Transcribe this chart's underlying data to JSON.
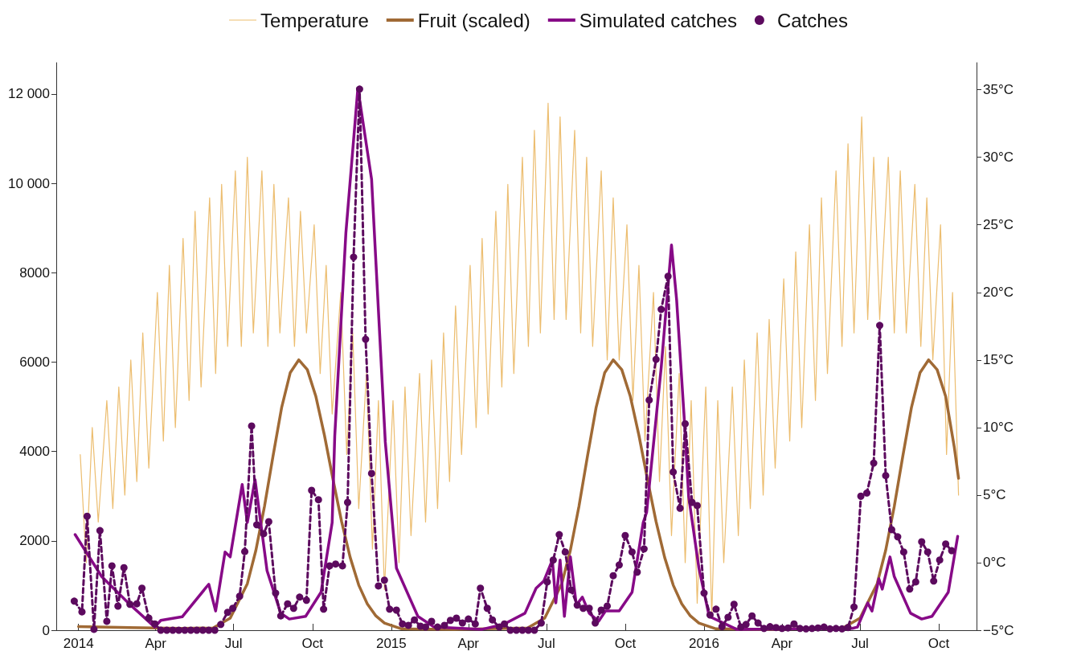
{
  "chart_data": {
    "type": "line",
    "legend": "top",
    "grid": false,
    "xlim": [
      "2013-12-06",
      "2016-11-14"
    ],
    "xticks": [
      {
        "value": "2014-01-01",
        "label": "2014"
      },
      {
        "value": "2014-04-01",
        "label": "Apr"
      },
      {
        "value": "2014-07-01",
        "label": "Jul"
      },
      {
        "value": "2014-10-01",
        "label": "Oct"
      },
      {
        "value": "2015-01-01",
        "label": "2015"
      },
      {
        "value": "2015-04-01",
        "label": "Apr"
      },
      {
        "value": "2015-07-01",
        "label": "Jul"
      },
      {
        "value": "2015-10-01",
        "label": "Oct"
      },
      {
        "value": "2016-01-01",
        "label": "2016"
      },
      {
        "value": "2016-04-01",
        "label": "Apr"
      },
      {
        "value": "2016-07-01",
        "label": "Jul"
      },
      {
        "value": "2016-10-01",
        "label": "Oct"
      }
    ],
    "ylim": [
      0,
      12700
    ],
    "yticks": [
      0,
      2000,
      4000,
      6000,
      8000,
      {
        "value": 10000,
        "label": "10 000"
      },
      {
        "value": 12000,
        "label": "12 000"
      }
    ],
    "y2lim": [
      -5,
      37
    ],
    "y2ticks": [
      {
        "value": -5,
        "label": "−5°C"
      },
      {
        "value": 0,
        "label": "0°C"
      },
      {
        "value": 5,
        "label": "5°C"
      },
      {
        "value": 10,
        "label": "10°C"
      },
      {
        "value": 15,
        "label": "15°C"
      },
      {
        "value": 20,
        "label": "20°C"
      },
      {
        "value": 25,
        "label": "25°C"
      },
      {
        "value": 30,
        "label": "30°C"
      },
      {
        "value": 35,
        "label": "35°C"
      }
    ],
    "series": [
      {
        "name": "Temperature",
        "axis": "y2",
        "color": "#ecbd6f",
        "marker": "none",
        "line_style": "solid",
        "x": [
          "2014-01-03",
          "2014-01-10",
          "2014-01-17",
          "2014-01-24",
          "2014-02-03",
          "2014-02-10",
          "2014-02-17",
          "2014-02-24",
          "2014-03-03",
          "2014-03-10",
          "2014-03-17",
          "2014-03-24",
          "2014-04-03",
          "2014-04-10",
          "2014-04-17",
          "2014-04-24",
          "2014-05-03",
          "2014-05-10",
          "2014-05-17",
          "2014-05-24",
          "2014-06-03",
          "2014-06-10",
          "2014-06-17",
          "2014-06-24",
          "2014-07-03",
          "2014-07-10",
          "2014-07-17",
          "2014-07-24",
          "2014-08-03",
          "2014-08-10",
          "2014-08-17",
          "2014-08-24",
          "2014-09-03",
          "2014-09-10",
          "2014-09-17",
          "2014-09-24",
          "2014-10-03",
          "2014-10-10",
          "2014-10-17",
          "2014-10-24",
          "2014-11-03",
          "2014-11-10",
          "2014-11-17",
          "2014-11-24",
          "2014-12-03",
          "2014-12-10",
          "2014-12-17",
          "2014-12-24",
          "2015-01-03",
          "2015-01-10",
          "2015-01-17",
          "2015-01-24",
          "2015-02-03",
          "2015-02-10",
          "2015-02-17",
          "2015-02-24",
          "2015-03-03",
          "2015-03-10",
          "2015-03-17",
          "2015-03-24",
          "2015-04-03",
          "2015-04-10",
          "2015-04-17",
          "2015-04-24",
          "2015-05-03",
          "2015-05-10",
          "2015-05-17",
          "2015-05-24",
          "2015-06-03",
          "2015-06-10",
          "2015-06-17",
          "2015-06-24",
          "2015-07-03",
          "2015-07-10",
          "2015-07-17",
          "2015-07-24",
          "2015-08-03",
          "2015-08-10",
          "2015-08-17",
          "2015-08-24",
          "2015-09-03",
          "2015-09-10",
          "2015-09-17",
          "2015-09-24",
          "2015-10-03",
          "2015-10-10",
          "2015-10-17",
          "2015-10-24",
          "2015-11-03",
          "2015-11-10",
          "2015-11-17",
          "2015-11-24",
          "2015-12-03",
          "2015-12-10",
          "2015-12-17",
          "2015-12-24",
          "2016-01-03",
          "2016-01-10",
          "2016-01-17",
          "2016-01-24",
          "2016-02-03",
          "2016-02-10",
          "2016-02-17",
          "2016-02-24",
          "2016-03-03",
          "2016-03-10",
          "2016-03-17",
          "2016-03-24",
          "2016-04-03",
          "2016-04-10",
          "2016-04-17",
          "2016-04-24",
          "2016-05-03",
          "2016-05-10",
          "2016-05-17",
          "2016-05-24",
          "2016-06-03",
          "2016-06-10",
          "2016-06-17",
          "2016-06-24",
          "2016-07-03",
          "2016-07-10",
          "2016-07-17",
          "2016-07-24",
          "2016-08-03",
          "2016-08-10",
          "2016-08-17",
          "2016-08-24",
          "2016-09-03",
          "2016-09-10",
          "2016-09-17",
          "2016-09-24",
          "2016-10-03",
          "2016-10-10",
          "2016-10-17",
          "2016-10-24"
        ],
        "values": [
          8,
          0,
          10,
          3,
          12,
          4,
          13,
          5,
          15,
          6,
          17,
          7,
          20,
          9,
          22,
          10,
          24,
          12,
          26,
          13,
          27,
          14,
          28,
          16,
          29,
          16,
          30,
          17,
          29,
          16,
          28,
          17,
          27,
          16,
          26,
          17,
          25,
          14,
          22,
          11,
          20,
          8,
          17,
          4,
          14,
          1,
          12,
          -2,
          12,
          0,
          13,
          2,
          14,
          3,
          15,
          4,
          17,
          6,
          19,
          8,
          22,
          10,
          24,
          11,
          26,
          13,
          28,
          14,
          30,
          16,
          32,
          17,
          34,
          18,
          33,
          18,
          32,
          17,
          30,
          16,
          29,
          15,
          27,
          15,
          25,
          12,
          22,
          9,
          20,
          6,
          16,
          2,
          14,
          0,
          12,
          -3,
          13,
          -4,
          12,
          0,
          13,
          2,
          15,
          4,
          17,
          5,
          18,
          7,
          21,
          9,
          23,
          10,
          25,
          12,
          27,
          14,
          29,
          16,
          31,
          17,
          33,
          18,
          30,
          18,
          30,
          17,
          29,
          17,
          28,
          16,
          27,
          15,
          25,
          8,
          20,
          5
        ]
      },
      {
        "name": "Fruit (scaled)",
        "axis": "y",
        "color": "#a06a35",
        "marker": "none",
        "line_style": "solid",
        "x": [
          "2014-01-01",
          "2014-03-01",
          "2014-05-01",
          "2014-06-07",
          "2014-06-27",
          "2014-07-17",
          "2014-07-27",
          "2014-08-06",
          "2014-08-16",
          "2014-08-26",
          "2014-09-05",
          "2014-09-15",
          "2014-09-25",
          "2014-10-05",
          "2014-10-15",
          "2014-10-25",
          "2014-11-04",
          "2014-11-14",
          "2014-11-24",
          "2014-12-04",
          "2014-12-14",
          "2014-12-24",
          "2015-01-13",
          "2015-03-15",
          "2015-06-09",
          "2015-06-29",
          "2015-07-19",
          "2015-07-29",
          "2015-08-08",
          "2015-08-18",
          "2015-08-28",
          "2015-09-07",
          "2015-09-17",
          "2015-09-27",
          "2015-10-07",
          "2015-10-17",
          "2015-10-27",
          "2015-11-06",
          "2015-11-16",
          "2015-11-26",
          "2015-12-06",
          "2015-12-16",
          "2015-12-26",
          "2016-01-15",
          "2016-03-15",
          "2016-06-11",
          "2016-07-01",
          "2016-07-21",
          "2016-07-31",
          "2016-08-10",
          "2016-08-20",
          "2016-08-30",
          "2016-09-09",
          "2016-09-19",
          "2016-09-29",
          "2016-10-09",
          "2016-10-19",
          "2016-10-24"
        ],
        "values": [
          80,
          60,
          40,
          50,
          270,
          1040,
          1790,
          2770,
          3900,
          4980,
          5760,
          6050,
          5830,
          5230,
          4360,
          3370,
          2430,
          1630,
          1010,
          590,
          320,
          160,
          30,
          20,
          50,
          270,
          1040,
          1790,
          2770,
          3900,
          4980,
          5760,
          6050,
          5830,
          5230,
          4360,
          3370,
          2430,
          1630,
          1010,
          590,
          320,
          160,
          30,
          20,
          50,
          270,
          1040,
          1790,
          2770,
          3900,
          4980,
          5760,
          6050,
          5830,
          5230,
          4100,
          3400
        ]
      },
      {
        "name": "Simulated catches",
        "axis": "y",
        "color": "#870a87",
        "marker": "none",
        "line_style": "solid",
        "x": [
          "2013-12-28",
          "2014-01-28",
          "2014-02-28",
          "2014-03-31",
          "2014-04-07",
          "2014-05-02",
          "2014-06-02",
          "2014-06-10",
          "2014-06-21",
          "2014-06-27",
          "2014-07-11",
          "2014-07-17",
          "2014-07-26",
          "2014-08-09",
          "2014-08-25",
          "2014-09-04",
          "2014-09-23",
          "2014-10-11",
          "2014-10-24",
          "2014-10-27",
          "2014-11-09",
          "2014-11-23",
          "2014-12-09",
          "2014-12-25",
          "2015-01-07",
          "2015-02-01",
          "2015-02-20",
          "2015-04-17",
          "2015-05-12",
          "2015-06-06",
          "2015-06-19",
          "2015-06-28",
          "2015-07-08",
          "2015-07-12",
          "2015-07-17",
          "2015-07-22",
          "2015-07-29",
          "2015-08-05",
          "2015-08-12",
          "2015-08-20",
          "2015-08-31",
          "2015-09-08",
          "2015-09-24",
          "2015-10-09",
          "2015-10-22",
          "2015-10-26",
          "2015-11-12",
          "2015-11-24",
          "2015-11-30",
          "2015-12-09",
          "2015-12-14",
          "2015-12-26",
          "2016-01-07",
          "2016-02-08",
          "2016-06-22",
          "2016-06-28",
          "2016-07-10",
          "2016-07-15",
          "2016-07-23",
          "2016-07-27",
          "2016-08-05",
          "2016-08-10",
          "2016-08-29",
          "2016-09-11",
          "2016-09-23",
          "2016-10-12",
          "2016-10-23"
        ],
        "values": [
          2140,
          1200,
          610,
          70,
          220,
          300,
          1030,
          430,
          1750,
          1640,
          3260,
          2410,
          3370,
          1330,
          380,
          250,
          310,
          850,
          2410,
          4340,
          8890,
          12130,
          10090,
          4210,
          1390,
          310,
          70,
          20,
          130,
          380,
          940,
          1100,
          1570,
          610,
          1570,
          310,
          1640,
          560,
          740,
          380,
          200,
          430,
          430,
          850,
          2410,
          2640,
          5880,
          8620,
          7390,
          4700,
          3000,
          1390,
          310,
          20,
          40,
          70,
          610,
          430,
          1150,
          920,
          1640,
          1200,
          380,
          250,
          310,
          850,
          2100
        ]
      },
      {
        "name": "Catches",
        "axis": "y",
        "color": "#5c0a5e",
        "marker": "circle",
        "line_style": "dashed",
        "x": [
          "2013-12-27",
          "2014-01-05",
          "2014-01-11",
          "2014-01-19",
          "2014-01-26",
          "2014-02-03",
          "2014-02-09",
          "2014-02-16",
          "2014-02-23",
          "2014-03-02",
          "2014-03-10",
          "2014-03-16",
          "2014-03-24",
          "2014-03-31",
          "2014-04-07",
          "2014-04-14",
          "2014-04-21",
          "2014-04-28",
          "2014-05-05",
          "2014-05-12",
          "2014-05-19",
          "2014-05-26",
          "2014-06-02",
          "2014-06-09",
          "2014-06-16",
          "2014-06-24",
          "2014-06-30",
          "2014-07-08",
          "2014-07-14",
          "2014-07-22",
          "2014-07-28",
          "2014-08-05",
          "2014-08-11",
          "2014-08-19",
          "2014-08-25",
          "2014-09-02",
          "2014-09-09",
          "2014-09-16",
          "2014-09-24",
          "2014-09-30",
          "2014-10-08",
          "2014-10-14",
          "2014-10-21",
          "2014-10-28",
          "2014-11-05",
          "2014-11-11",
          "2014-11-18",
          "2014-11-25",
          "2014-12-02",
          "2014-12-09",
          "2014-12-17",
          "2014-12-24",
          "2014-12-30",
          "2015-01-07",
          "2015-01-14",
          "2015-01-21",
          "2015-01-28",
          "2015-02-04",
          "2015-02-10",
          "2015-02-17",
          "2015-02-24",
          "2015-03-04",
          "2015-03-11",
          "2015-03-18",
          "2015-03-25",
          "2015-04-01",
          "2015-04-09",
          "2015-04-15",
          "2015-04-23",
          "2015-04-29",
          "2015-05-07",
          "2015-05-13",
          "2015-05-20",
          "2015-05-27",
          "2015-06-03",
          "2015-06-10",
          "2015-06-17",
          "2015-06-25",
          "2015-07-02",
          "2015-07-09",
          "2015-07-16",
          "2015-07-23",
          "2015-07-30",
          "2015-08-06",
          "2015-08-13",
          "2015-08-20",
          "2015-08-27",
          "2015-09-03",
          "2015-09-10",
          "2015-09-17",
          "2015-09-24",
          "2015-10-01",
          "2015-10-09",
          "2015-10-15",
          "2015-10-23",
          "2015-10-29",
          "2015-11-06",
          "2015-11-12",
          "2015-11-20",
          "2015-11-26",
          "2015-12-04",
          "2015-12-10",
          "2015-12-18",
          "2015-12-24",
          "2016-01-01",
          "2016-01-08",
          "2016-01-15",
          "2016-01-22",
          "2016-01-29",
          "2016-02-05",
          "2016-02-13",
          "2016-02-19",
          "2016-02-26",
          "2016-03-04",
          "2016-03-11",
          "2016-03-18",
          "2016-03-25",
          "2016-04-01",
          "2016-04-08",
          "2016-04-15",
          "2016-04-22",
          "2016-04-29",
          "2016-05-06",
          "2016-05-13",
          "2016-05-20",
          "2016-05-27",
          "2016-06-03",
          "2016-06-10",
          "2016-06-17",
          "2016-06-24",
          "2016-07-02",
          "2016-07-09",
          "2016-07-17",
          "2016-07-24",
          "2016-07-31",
          "2016-08-07",
          "2016-08-14",
          "2016-08-21",
          "2016-08-28",
          "2016-09-04",
          "2016-09-11",
          "2016-09-18",
          "2016-09-25",
          "2016-10-02",
          "2016-10-09",
          "2016-10-16"
        ],
        "values": [
          650,
          410,
          2550,
          20,
          2230,
          200,
          1440,
          540,
          1400,
          580,
          590,
          940,
          270,
          140,
          0,
          0,
          0,
          0,
          0,
          0,
          0,
          0,
          0,
          0,
          130,
          400,
          490,
          760,
          1760,
          4570,
          2360,
          2160,
          2430,
          830,
          320,
          590,
          490,
          740,
          670,
          3130,
          2920,
          470,
          1440,
          1480,
          1440,
          2860,
          8350,
          12110,
          6510,
          3510,
          990,
          1120,
          470,
          450,
          140,
          110,
          230,
          90,
          70,
          200,
          70,
          110,
          220,
          270,
          160,
          250,
          140,
          940,
          490,
          230,
          70,
          140,
          0,
          0,
          0,
          0,
          0,
          160,
          1080,
          1570,
          2140,
          1750,
          900,
          560,
          490,
          490,
          160,
          450,
          540,
          1220,
          1460,
          2120,
          1750,
          1300,
          1820,
          5150,
          6060,
          7180,
          7920,
          3540,
          2730,
          4620,
          2860,
          2790,
          830,
          340,
          470,
          80,
          290,
          580,
          70,
          130,
          320,
          160,
          40,
          80,
          60,
          40,
          50,
          140,
          40,
          30,
          40,
          50,
          70,
          30,
          40,
          30,
          60,
          520,
          3000,
          3070,
          3740,
          6820,
          3460,
          2250,
          2090,
          1750,
          920,
          1080,
          1980,
          1750,
          1100,
          1570,
          1930,
          1780
        ]
      }
    ]
  }
}
